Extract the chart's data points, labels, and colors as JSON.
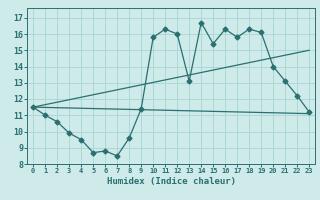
{
  "xlabel": "Humidex (Indice chaleur)",
  "bg_color": "#ceeae9",
  "grid_color": "#a8d4d4",
  "line_color": "#2a7070",
  "xlim": [
    -0.5,
    23.5
  ],
  "ylim": [
    8,
    17.6
  ],
  "xticks": [
    0,
    1,
    2,
    3,
    4,
    5,
    6,
    7,
    8,
    9,
    10,
    11,
    12,
    13,
    14,
    15,
    16,
    17,
    18,
    19,
    20,
    21,
    22,
    23
  ],
  "yticks": [
    8,
    9,
    10,
    11,
    12,
    13,
    14,
    15,
    16,
    17
  ],
  "line1_x": [
    0,
    1,
    2,
    3,
    4,
    5,
    6,
    7,
    8,
    9,
    10,
    11,
    12,
    13,
    14,
    15,
    16,
    17,
    18,
    19,
    20,
    21,
    22,
    23
  ],
  "line1_y": [
    11.5,
    11.0,
    10.6,
    9.9,
    9.5,
    8.7,
    8.8,
    8.5,
    9.6,
    11.4,
    15.8,
    16.3,
    16.0,
    13.1,
    16.7,
    15.4,
    16.3,
    15.8,
    16.3,
    16.1,
    14.0,
    13.1,
    12.2,
    11.2
  ],
  "line2_x": [
    0,
    23
  ],
  "line2_y": [
    11.5,
    15.0
  ],
  "line3_x": [
    0,
    23
  ],
  "line3_y": [
    11.5,
    11.1
  ],
  "markersize": 2.5
}
